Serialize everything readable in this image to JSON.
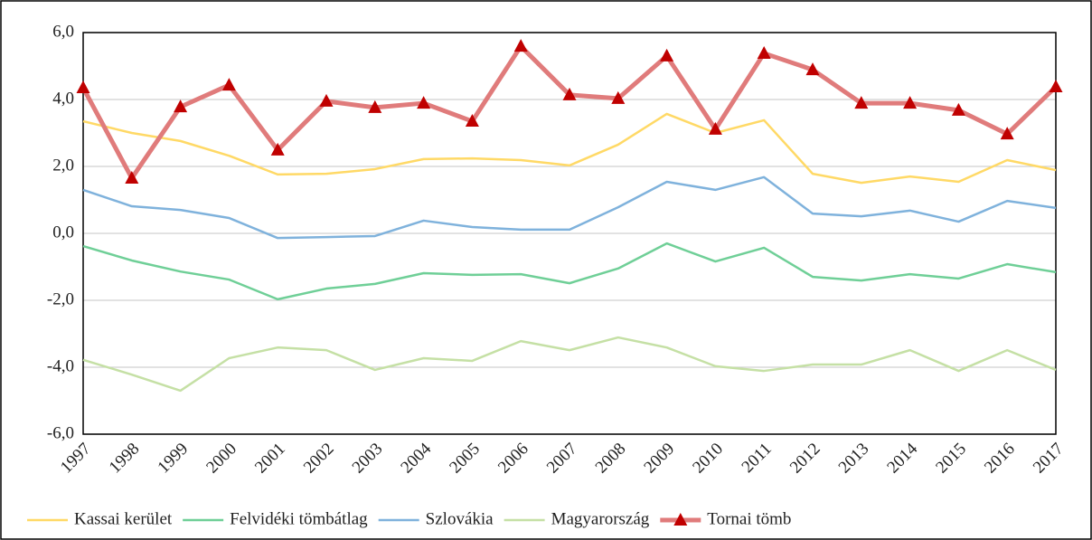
{
  "chart_data": {
    "type": "line",
    "categories": [
      "1997",
      "1998",
      "1999",
      "2000",
      "2001",
      "2002",
      "2003",
      "2004",
      "2005",
      "2006",
      "2007",
      "2008",
      "2009",
      "2010",
      "2011",
      "2012",
      "2013",
      "2014",
      "2015",
      "2016",
      "2017"
    ],
    "series": [
      {
        "name": "Kassai kerület",
        "color": "#ffd966",
        "values": [
          3.35,
          3.0,
          2.76,
          2.32,
          1.76,
          1.78,
          1.92,
          2.22,
          2.24,
          2.19,
          2.03,
          2.65,
          3.57,
          3.0,
          3.38,
          1.78,
          1.51,
          1.7,
          1.54,
          2.19,
          1.89
        ]
      },
      {
        "name": "Felvidéki tömbátlag",
        "color": "#6fcf97",
        "values": [
          -0.38,
          -0.81,
          -1.14,
          -1.38,
          -1.97,
          -1.65,
          -1.51,
          -1.19,
          -1.24,
          -1.22,
          -1.49,
          -1.05,
          -0.3,
          -0.84,
          -0.43,
          -1.3,
          -1.41,
          -1.22,
          -1.35,
          -0.92,
          -1.16
        ]
      },
      {
        "name": "Szlovákia",
        "color": "#7fb2dc",
        "values": [
          1.3,
          0.81,
          0.7,
          0.46,
          -0.14,
          -0.11,
          -0.08,
          0.38,
          0.19,
          0.11,
          0.11,
          0.78,
          1.54,
          1.3,
          1.68,
          0.59,
          0.51,
          0.68,
          0.35,
          0.97,
          0.76
        ]
      },
      {
        "name": "Magyarország",
        "color": "#c5e0a5",
        "values": [
          -3.78,
          -4.22,
          -4.7,
          -3.73,
          -3.41,
          -3.49,
          -4.08,
          -3.73,
          -3.81,
          -3.22,
          -3.49,
          -3.11,
          -3.41,
          -3.97,
          -4.11,
          -3.92,
          -3.92,
          -3.49,
          -4.11,
          -3.49,
          -4.08
        ]
      },
      {
        "name": "Tornai tömb",
        "color": "#e07b7b",
        "marker": "triangle",
        "marker_color": "#c00000",
        "values": [
          4.35,
          1.65,
          3.78,
          4.43,
          2.49,
          3.95,
          3.76,
          3.89,
          3.35,
          5.59,
          4.14,
          4.03,
          5.3,
          3.11,
          5.38,
          4.89,
          3.89,
          3.89,
          3.68,
          2.97,
          4.38
        ]
      }
    ],
    "ylim": [
      -6,
      6
    ],
    "yticks": [
      {
        "value": -6,
        "label": "-6,0"
      },
      {
        "value": -4,
        "label": "-4,0"
      },
      {
        "value": -2,
        "label": "-2,0"
      },
      {
        "value": 0,
        "label": "0,0"
      },
      {
        "value": 2,
        "label": "2,0"
      },
      {
        "value": 4,
        "label": "4,0"
      },
      {
        "value": 6,
        "label": "6,0"
      }
    ],
    "grid": true,
    "legend": "bottom"
  }
}
